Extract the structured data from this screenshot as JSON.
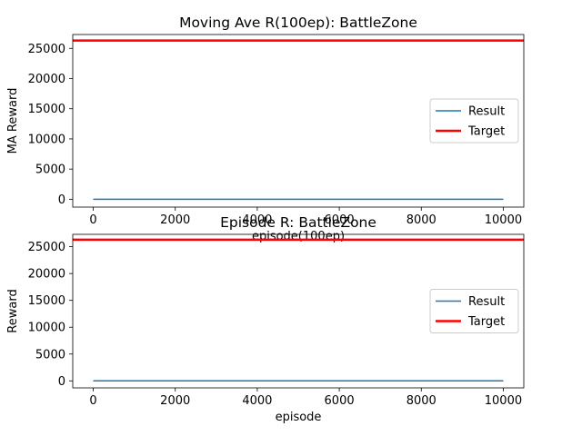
{
  "chart_data": [
    {
      "type": "line",
      "title": "Moving Ave R(100ep): BattleZone",
      "xlabel": "episode(100ep)",
      "ylabel": "MA Reward",
      "xlim": [
        -500,
        10500
      ],
      "ylim": [
        -1300,
        27300
      ],
      "xticks": [
        0,
        2000,
        4000,
        6000,
        8000,
        10000
      ],
      "yticks": [
        0,
        5000,
        10000,
        15000,
        20000,
        25000
      ],
      "xtick_labels": [
        "0",
        "2000",
        "4000",
        "6000",
        "8000",
        "10000"
      ],
      "ytick_labels": [
        "0",
        "5000",
        "10000",
        "15000",
        "20000",
        "25000"
      ],
      "legend_position": "center-right",
      "series": [
        {
          "name": "Result",
          "color": "#1f77b4",
          "x": [
            0,
            10000
          ],
          "y": [
            0,
            0
          ]
        },
        {
          "name": "Target",
          "color": "#ff0000",
          "x": [
            -500,
            10500
          ],
          "y": [
            26300,
            26300
          ]
        }
      ]
    },
    {
      "type": "line",
      "title": "Episode R: BattleZone",
      "xlabel": "episode",
      "ylabel": "Reward",
      "xlim": [
        -500,
        10500
      ],
      "ylim": [
        -1300,
        27300
      ],
      "xticks": [
        0,
        2000,
        4000,
        6000,
        8000,
        10000
      ],
      "yticks": [
        0,
        5000,
        10000,
        15000,
        20000,
        25000
      ],
      "xtick_labels": [
        "0",
        "2000",
        "4000",
        "6000",
        "8000",
        "10000"
      ],
      "ytick_labels": [
        "0",
        "5000",
        "10000",
        "15000",
        "20000",
        "25000"
      ],
      "legend_position": "center-right",
      "series": [
        {
          "name": "Result",
          "color": "#1f77b4",
          "x": [
            0,
            10000
          ],
          "y": [
            0,
            0
          ]
        },
        {
          "name": "Target",
          "color": "#ff0000",
          "x": [
            -500,
            10500
          ],
          "y": [
            26300,
            26300
          ]
        }
      ]
    }
  ]
}
